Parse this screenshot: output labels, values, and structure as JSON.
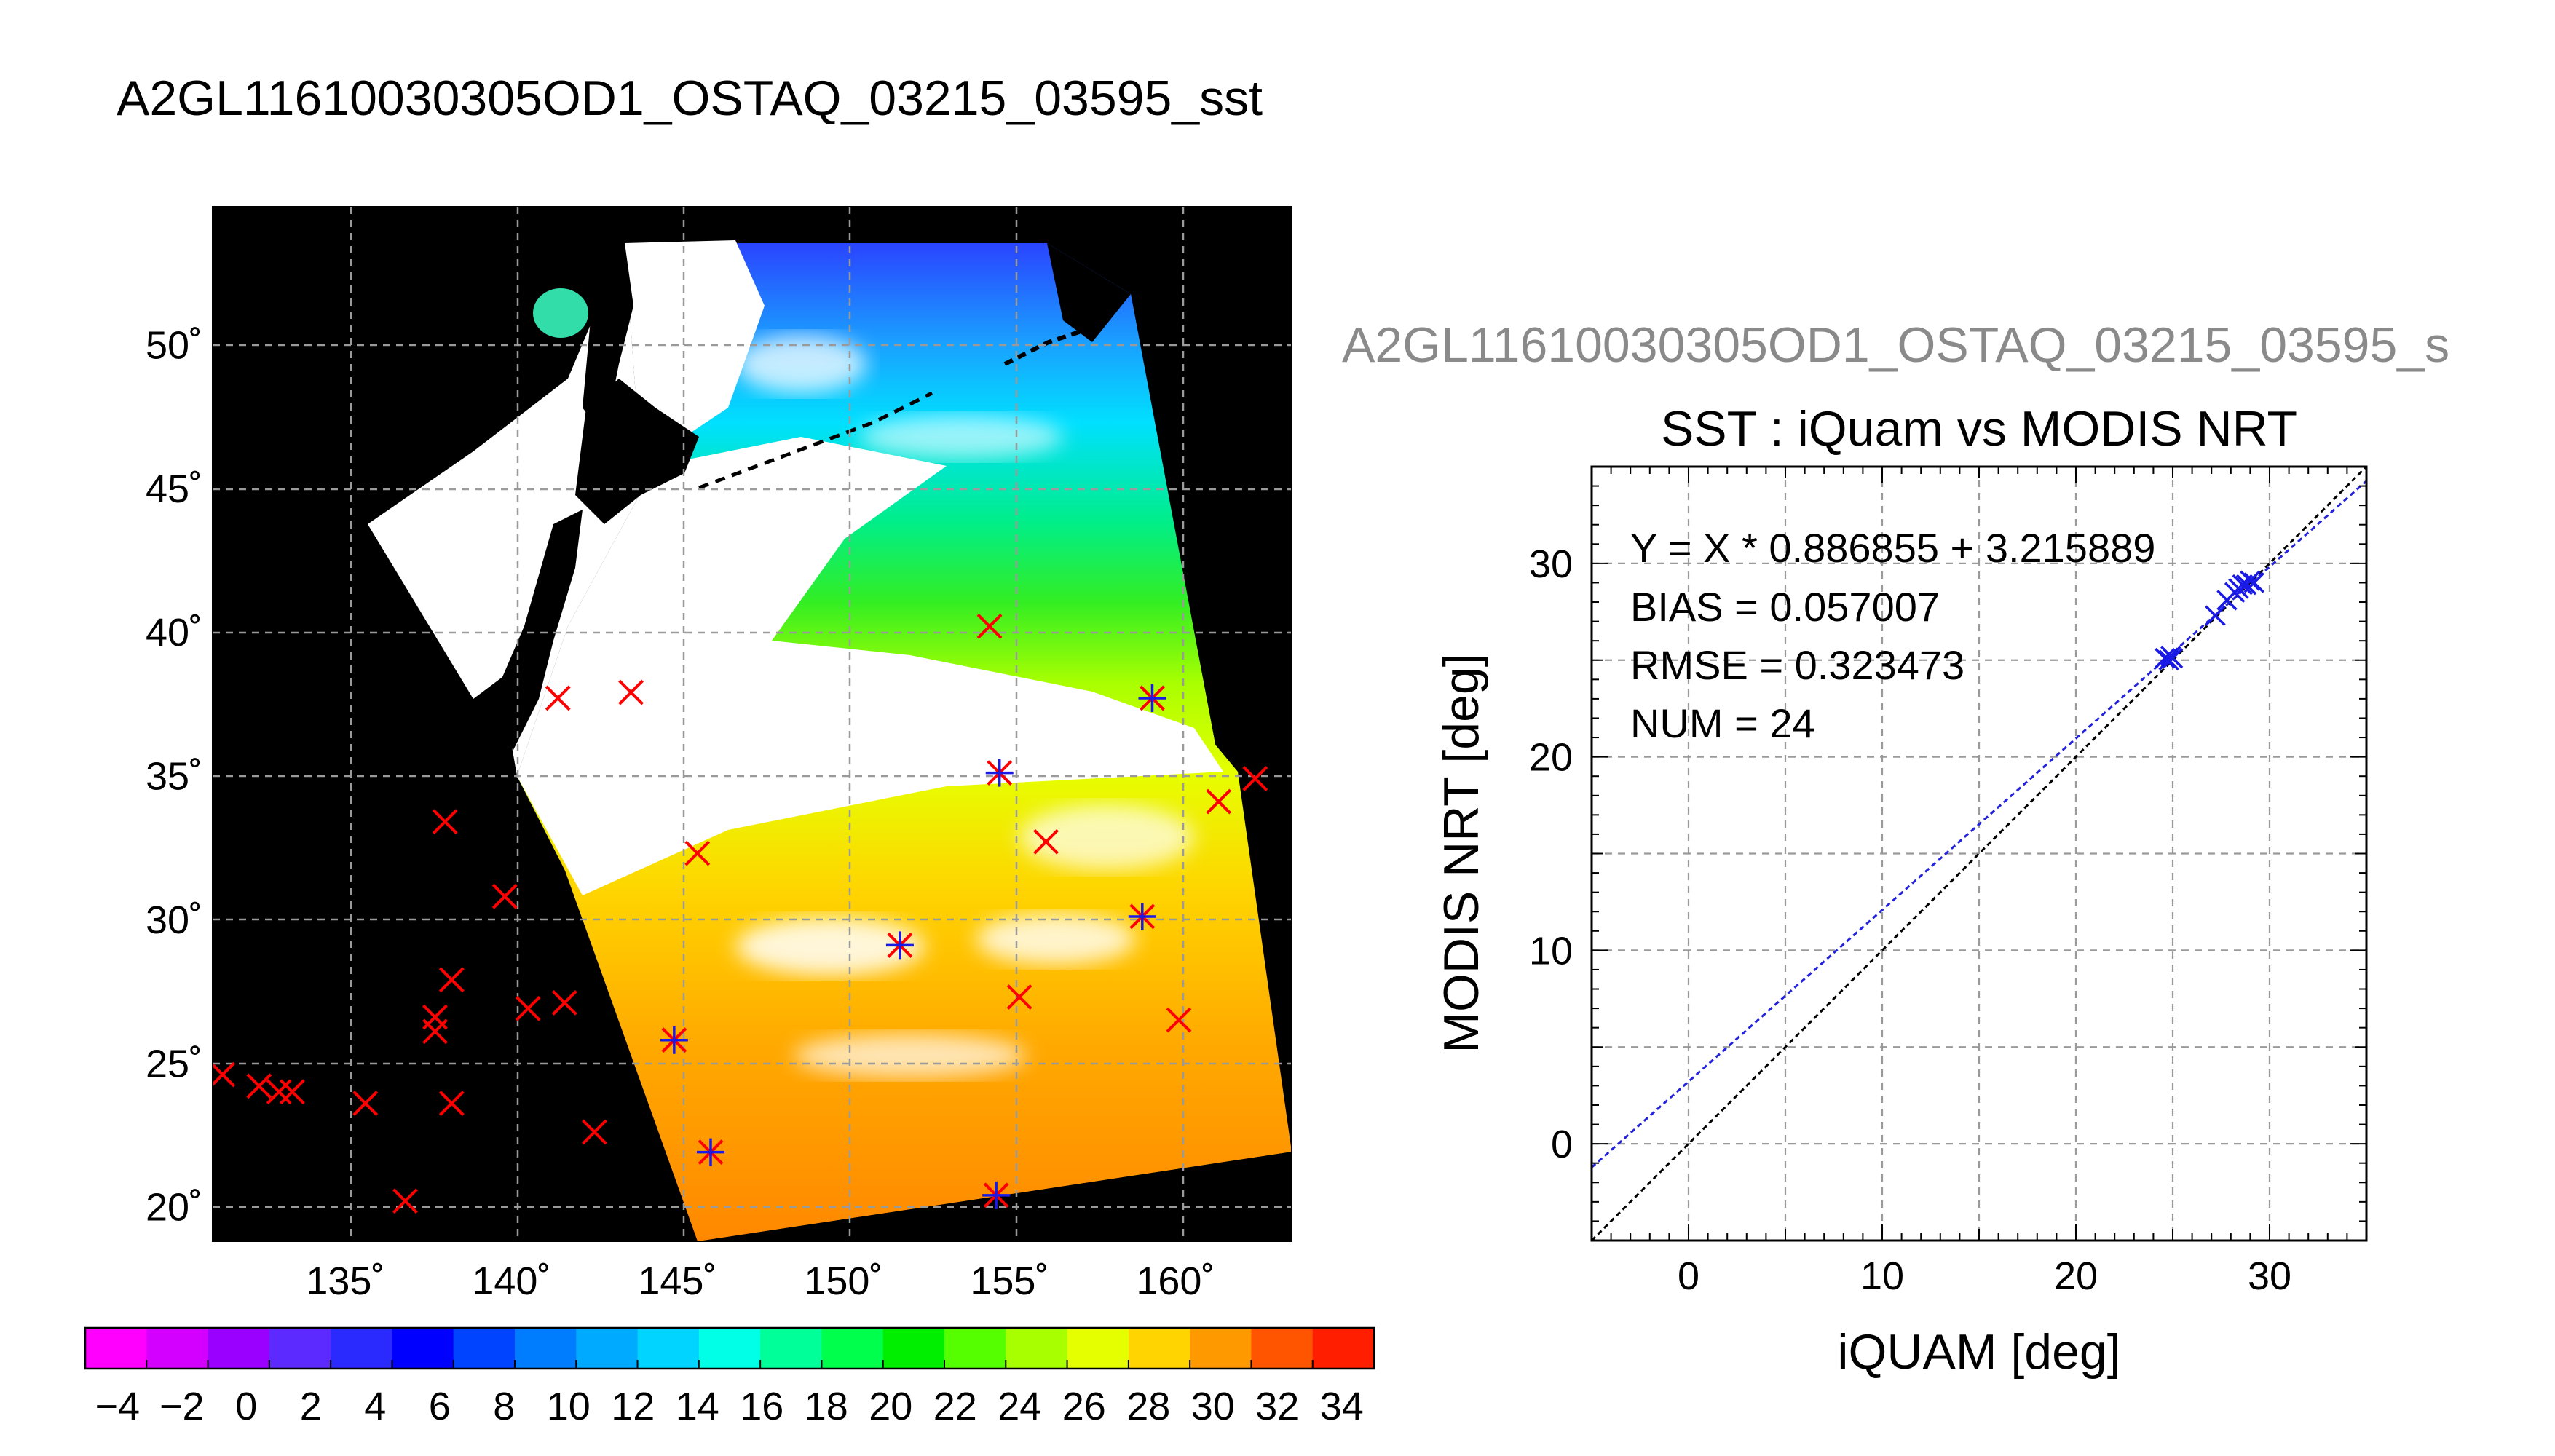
{
  "page": {
    "main_title": "A2GL11610030305OD1_OSTAQ_03215_03595_sst",
    "side_title": "A2GL11610030305OD1_OSTAQ_03215_03595_s"
  },
  "colors": {
    "map_background": "#000000",
    "land": "#ffffff",
    "cross_red": "#ff0000",
    "star_blue": "#1a1ae6",
    "fit_line": "#2222dd",
    "identity_line": "#000000",
    "grid": "#9a9a9a"
  },
  "chart_data": [
    {
      "type": "scatter",
      "name": "map",
      "xlabel": "",
      "ylabel": "",
      "xlim": [
        131,
        163.5
      ],
      "ylim": [
        18.8,
        54.8
      ],
      "lon_ticks": [
        135,
        140,
        145,
        150,
        155,
        160
      ],
      "lat_ticks": [
        20,
        25,
        30,
        35,
        40,
        45,
        50
      ],
      "lon_tick_labels": [
        "135˚",
        "140˚",
        "145˚",
        "150˚",
        "155˚",
        "160˚"
      ],
      "lat_tick_labels": [
        "20˚",
        "25˚",
        "30˚",
        "35˚",
        "40˚",
        "45˚",
        "50˚"
      ],
      "cross_points": [
        [
          131.3,
          24.6
        ],
        [
          132.4,
          24.2
        ],
        [
          133.0,
          24.0
        ],
        [
          133.4,
          24.0
        ],
        [
          135.6,
          23.6
        ],
        [
          136.8,
          20.2
        ],
        [
          137.7,
          26.6
        ],
        [
          137.7,
          26.1
        ],
        [
          138.0,
          33.4
        ],
        [
          138.2,
          27.9
        ],
        [
          138.2,
          23.6
        ],
        [
          139.8,
          30.8
        ],
        [
          140.5,
          26.9
        ],
        [
          141.4,
          37.7
        ],
        [
          141.6,
          27.1
        ],
        [
          142.5,
          22.6
        ],
        [
          143.6,
          37.9
        ],
        [
          144.9,
          25.8
        ],
        [
          145.6,
          32.3
        ],
        [
          146.0,
          21.9
        ],
        [
          151.7,
          29.1
        ],
        [
          154.4,
          40.2
        ],
        [
          154.6,
          20.4
        ],
        [
          154.7,
          35.1
        ],
        [
          155.3,
          27.3
        ],
        [
          156.1,
          32.7
        ],
        [
          159.0,
          30.1
        ],
        [
          159.3,
          37.7
        ],
        [
          160.1,
          26.5
        ],
        [
          161.3,
          34.1
        ],
        [
          162.4,
          34.9
        ]
      ],
      "star_points": [
        [
          144.9,
          25.8
        ],
        [
          146.0,
          21.9
        ],
        [
          151.7,
          29.1
        ],
        [
          154.7,
          35.1
        ],
        [
          154.6,
          20.4
        ],
        [
          159.0,
          30.1
        ],
        [
          159.3,
          37.7
        ]
      ]
    },
    {
      "type": "heatmap",
      "name": "colorbar",
      "range": [
        -5,
        35
      ],
      "step": 2,
      "tick_values": [
        -4,
        -2,
        0,
        2,
        4,
        6,
        8,
        10,
        12,
        14,
        16,
        18,
        20,
        22,
        24,
        26,
        28,
        30,
        32,
        34
      ],
      "tick_labels": [
        "−4",
        "−2",
        "0",
        "2",
        "4",
        "6",
        "8",
        "10",
        "12",
        "14",
        "16",
        "18",
        "20",
        "22",
        "24",
        "26",
        "28",
        "30",
        "32",
        "34"
      ],
      "colors": [
        "#ff00ff",
        "#d400ff",
        "#9900ff",
        "#5c2aff",
        "#2a2aff",
        "#0000ff",
        "#0044ff",
        "#007cff",
        "#00aaff",
        "#00d4ff",
        "#00ffe6",
        "#00ff99",
        "#00ff4d",
        "#00ee00",
        "#55ff00",
        "#a8ff00",
        "#e6ff00",
        "#ffd400",
        "#ff9900",
        "#ff5500",
        "#ff1f00"
      ]
    },
    {
      "type": "scatter",
      "name": "sst-comparison",
      "title": "SST : iQuam vs MODIS NRT",
      "xlabel": "iQUAM [deg]",
      "ylabel": "MODIS NRT [deg]",
      "xlim": [
        -5,
        35
      ],
      "ylim": [
        -5,
        35
      ],
      "x_ticks": [
        0,
        10,
        20,
        30
      ],
      "y_ticks": [
        0,
        10,
        20,
        30
      ],
      "grid": true,
      "stats": [
        "Y = X * 0.886855 + 3.215889",
        "BIAS = 0.057007",
        "RMSE = 0.323473",
        "NUM = 24"
      ],
      "fit": {
        "slope": 0.886855,
        "intercept": 3.215889
      },
      "points": [
        [
          24.6,
          25.1
        ],
        [
          24.8,
          25.0
        ],
        [
          25.0,
          25.1
        ],
        [
          24.9,
          25.2
        ],
        [
          27.2,
          27.3
        ],
        [
          27.8,
          28.1
        ],
        [
          28.2,
          28.5
        ],
        [
          28.4,
          28.7
        ],
        [
          28.6,
          28.9
        ],
        [
          28.8,
          28.9
        ],
        [
          29.0,
          29.1
        ],
        [
          29.2,
          29.0
        ]
      ]
    }
  ]
}
